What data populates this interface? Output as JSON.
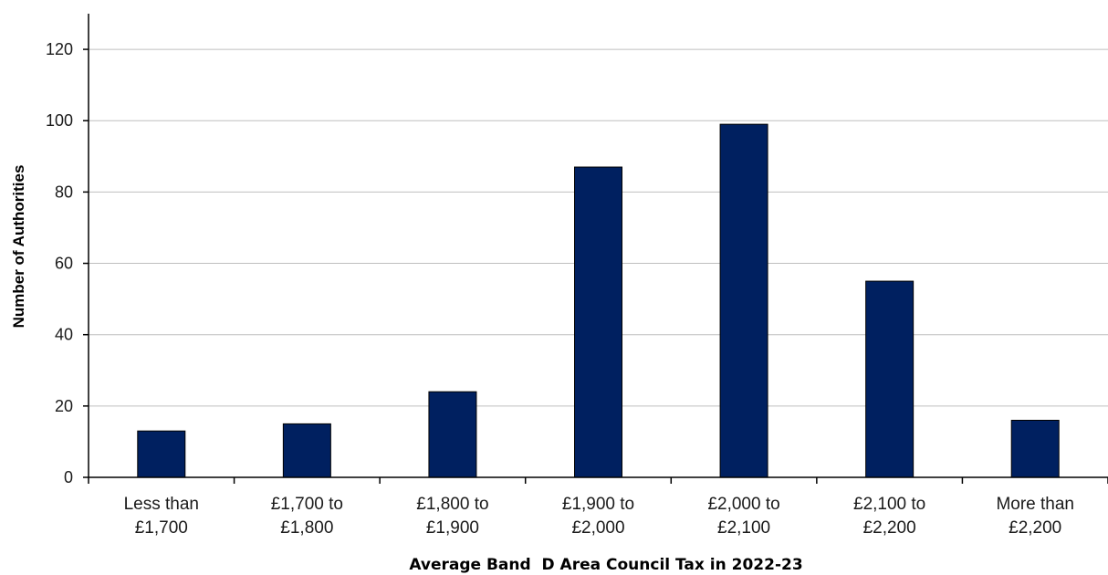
{
  "chart_data": {
    "type": "bar",
    "title": "",
    "xlabel": "Average Band  D Area Council Tax in 2022-23",
    "ylabel": "Number of Authorities",
    "categories": [
      [
        "Less than",
        "£1,700"
      ],
      [
        "£1,700 to",
        "£1,800"
      ],
      [
        "£1,800 to",
        "£1,900"
      ],
      [
        "£1,900 to",
        "£2,000"
      ],
      [
        "£2,000 to",
        "£2,100"
      ],
      [
        "£2,100 to",
        "£2,200"
      ],
      [
        "More than",
        "£2,200"
      ]
    ],
    "values": [
      13,
      15,
      24,
      87,
      99,
      55,
      16
    ],
    "ylim": [
      0,
      130
    ],
    "yticks": [
      "0",
      "20",
      "40",
      "60",
      "80",
      "100",
      "120"
    ],
    "grid": true,
    "colors": {
      "bar": "#002060",
      "bar_edge": "#000000",
      "grid": "#bfbfbf",
      "axis": "#000000"
    }
  }
}
